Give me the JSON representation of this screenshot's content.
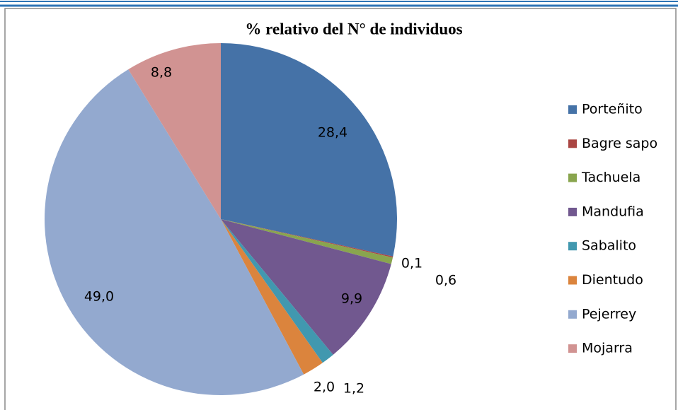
{
  "chart_data": {
    "type": "pie",
    "title": "% relativo del N° de individuos",
    "categories": [
      "Porteñito",
      "Bagre sapo",
      "Tachuela",
      "Mandufia",
      "Sabalito",
      "Dientudo",
      "Pejerrey",
      "Mojarra"
    ],
    "values": [
      28.4,
      0.1,
      0.6,
      9.9,
      1.2,
      2.0,
      49.0,
      8.8
    ],
    "value_labels": [
      "28,4",
      "0,1",
      "0,6",
      "9,9",
      "1,2",
      "2,0",
      "49,0",
      "8,8"
    ],
    "colors": [
      "#4572a7",
      "#aa4643",
      "#89a54e",
      "#71588f",
      "#4198af",
      "#db843d",
      "#93a9cf",
      "#d19392"
    ],
    "legend": "right"
  }
}
